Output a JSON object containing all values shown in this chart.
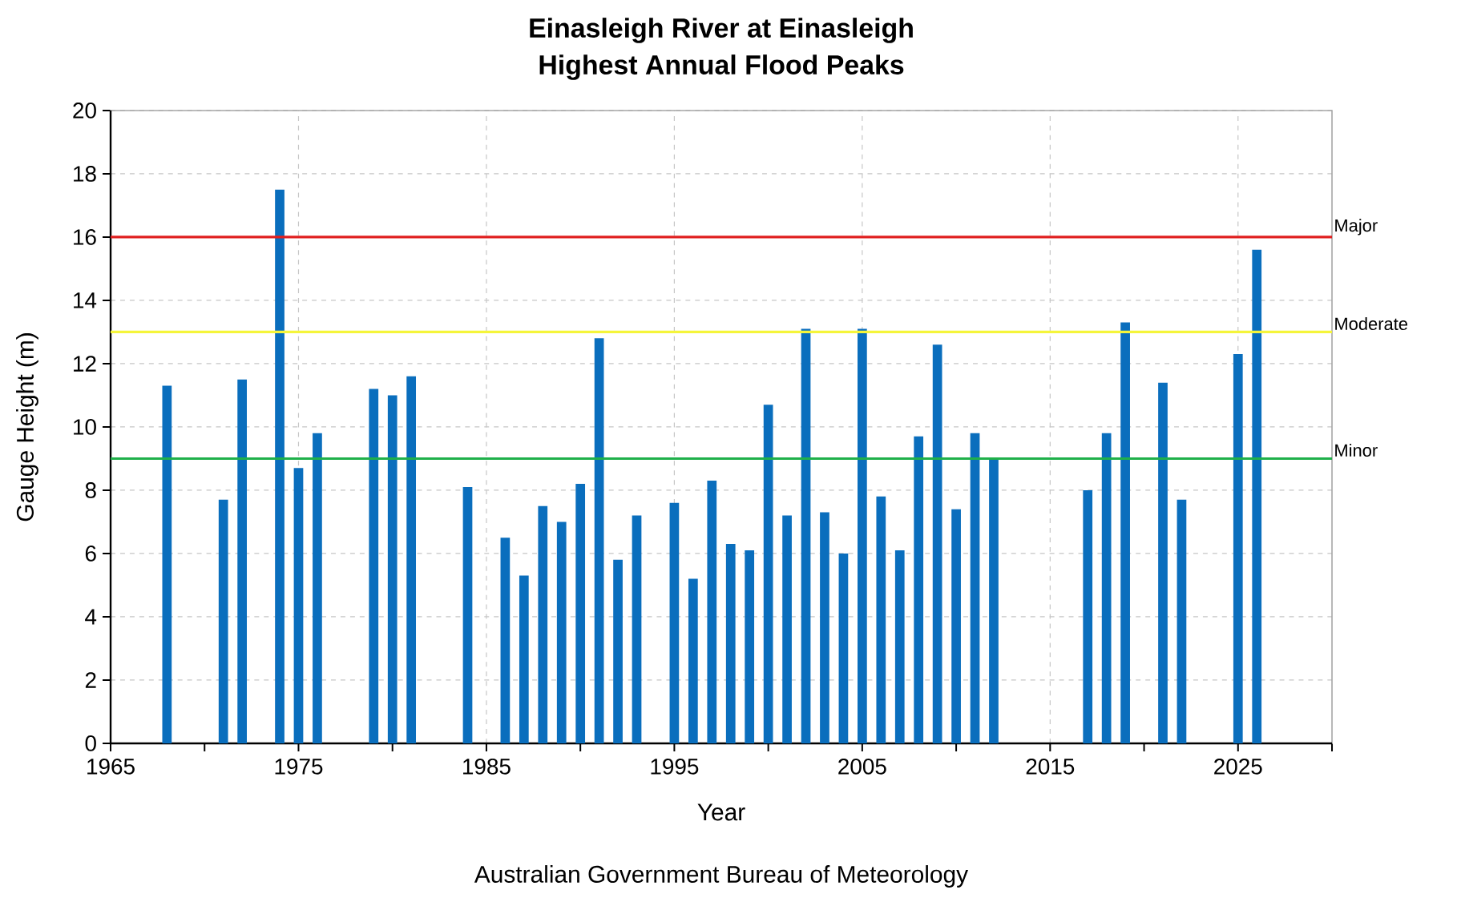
{
  "chart_data": {
    "type": "bar",
    "title": "Einasleigh River at Einasleigh",
    "subtitle": "Highest Annual Flood Peaks",
    "xlabel": "Year",
    "ylabel": "Gauge Height (m)",
    "annotations": [
      "Australian Government Bureau of Meteorology"
    ],
    "x": [
      1968,
      1971,
      1972,
      1974,
      1975,
      1976,
      1979,
      1980,
      1981,
      1984,
      1986,
      1987,
      1988,
      1989,
      1990,
      1991,
      1992,
      1993,
      1995,
      1996,
      1997,
      1998,
      1999,
      2000,
      2001,
      2002,
      2003,
      2004,
      2005,
      2006,
      2007,
      2008,
      2009,
      2010,
      2011,
      2012,
      2017,
      2018,
      2019,
      2021,
      2022,
      2025,
      2026
    ],
    "values": [
      11.3,
      7.7,
      11.5,
      17.5,
      8.7,
      9.8,
      11.2,
      11.0,
      11.6,
      8.1,
      6.5,
      5.3,
      7.5,
      7.0,
      8.2,
      12.8,
      5.8,
      7.2,
      7.6,
      5.2,
      8.3,
      6.3,
      6.1,
      10.7,
      7.2,
      13.1,
      7.3,
      6.0,
      13.1,
      7.8,
      6.1,
      9.7,
      12.6,
      7.4,
      9.8,
      9.0,
      8.0,
      9.8,
      13.3,
      11.4,
      7.7,
      12.3,
      15.6
    ],
    "color": "#0a6ebd",
    "xlim": [
      1965,
      2030
    ],
    "ylim": [
      0,
      20
    ],
    "xticks": [
      1965,
      {
        "value": 1970,
        "label": null
      },
      1975,
      {
        "value": 1980,
        "label": null
      },
      1985,
      {
        "value": 1990,
        "label": null
      },
      1995,
      {
        "value": 2000,
        "label": null
      },
      2005,
      {
        "value": 2010,
        "label": null
      },
      2015,
      {
        "value": 2020,
        "label": null
      },
      2025,
      {
        "value": 2030,
        "label": null
      }
    ],
    "yticks": [
      0,
      2,
      4,
      6,
      8,
      10,
      12,
      14,
      16,
      18,
      20
    ],
    "ref_lines": [
      {
        "axis": "y",
        "value": 16,
        "label": "Major",
        "color": "#e02020"
      },
      {
        "axis": "y",
        "value": 13,
        "label": "Moderate",
        "color": "#f5f53a"
      },
      {
        "axis": "y",
        "value": 9,
        "label": "Minor",
        "color": "#1fb04a"
      }
    ],
    "grid": true
  }
}
